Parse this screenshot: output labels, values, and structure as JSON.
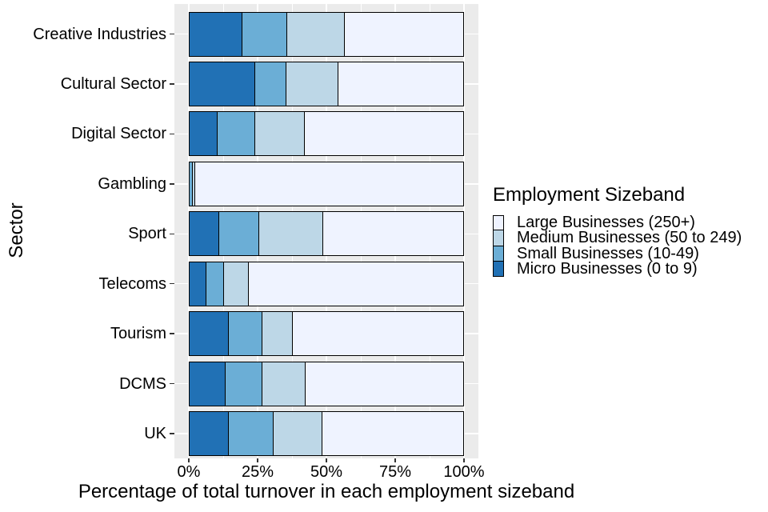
{
  "chart_data": {
    "type": "bar",
    "orientation": "horizontal",
    "stacked": true,
    "title": "",
    "xlabel": "Percentage of total turnover in each employment sizeband",
    "ylabel": "Sector",
    "xlim": [
      0,
      100
    ],
    "x_ticks": {
      "values": [
        0,
        25,
        50,
        75,
        100
      ],
      "labels": [
        "0%",
        "25%",
        "50%",
        "75%",
        "100%"
      ]
    },
    "grid": "on",
    "categories": [
      "Creative Industries",
      "Cultural Sector",
      "Digital Sector",
      "Gambling",
      "Sport",
      "Telecoms",
      "Tourism",
      "DCMS",
      "UK"
    ],
    "series": [
      {
        "name": "Micro Businesses (0 to 9)",
        "color": "#2171B5",
        "values": [
          19.6,
          24.2,
          10.6,
          0.3,
          11.0,
          6.3,
          14.5,
          13.3,
          14.5
        ]
      },
      {
        "name": "Small Businesses (10-49)",
        "color": "#6BAED6",
        "values": [
          16.2,
          11.4,
          13.5,
          1.2,
          14.6,
          6.6,
          12.2,
          13.5,
          16.2
        ]
      },
      {
        "name": "Medium Businesses (50 to 249)",
        "color": "#BDD7E7",
        "values": [
          20.9,
          18.9,
          18.1,
          0.7,
          23.1,
          8.9,
          11.0,
          15.5,
          17.9
        ]
      },
      {
        "name": "Large Businesses (250+)",
        "color": "#EFF3FF",
        "values": [
          43.3,
          45.5,
          57.8,
          97.8,
          51.3,
          78.2,
          62.3,
          57.7,
          51.4
        ]
      }
    ],
    "legend": {
      "title": "Employment Sizeband",
      "position": "right",
      "entries": [
        {
          "label": "Large Businesses (250+)",
          "color": "#EFF3FF"
        },
        {
          "label": "Medium Businesses (50 to 249)",
          "color": "#BDD7E7"
        },
        {
          "label": "Small Businesses (10-49)",
          "color": "#6BAED6"
        },
        {
          "label": "Micro Businesses (0 to 9)",
          "color": "#2171B5"
        }
      ]
    },
    "style": {
      "panel_background": "#EBEBEB",
      "gridline_color": "#FFFFFF",
      "bar_outline": "#000000"
    }
  }
}
